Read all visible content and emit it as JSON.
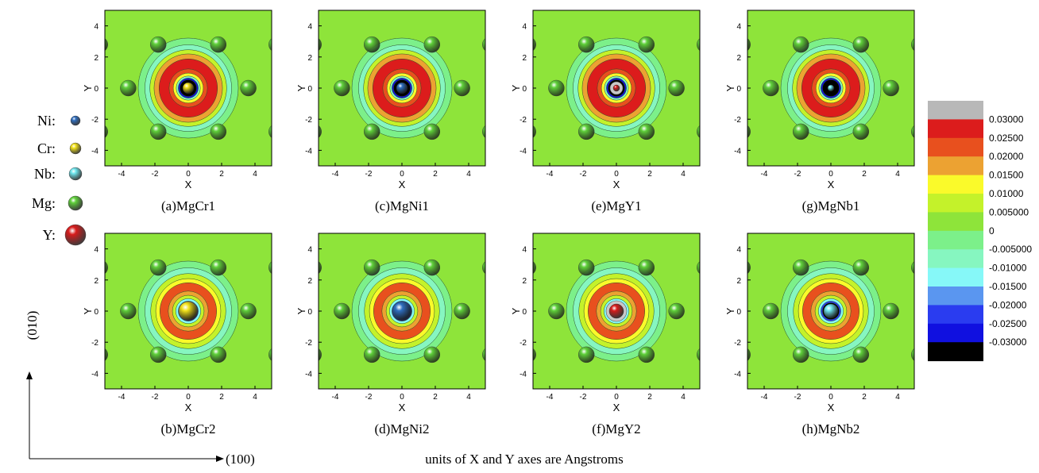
{
  "figure": {
    "atom_legend": [
      {
        "label": "Ni:",
        "color": "#2f6fc0"
      },
      {
        "label": "Cr:",
        "color": "#f2e21a"
      },
      {
        "label": "Nb:",
        "color": "#6fe8f0"
      },
      {
        "label": "Mg:",
        "color": "#5fd03a"
      },
      {
        "label": "Y:",
        "color": "#d81c1c"
      }
    ],
    "x_label": "X",
    "y_label": "Y",
    "xlim": [
      -5,
      5
    ],
    "ylim": [
      -5,
      5
    ],
    "ticks": [
      -4,
      -2,
      0,
      2,
      4
    ],
    "panels": [
      {
        "caption": "(a)MgCr1",
        "center_color": "#f2e21a"
      },
      {
        "caption": "(c)MgNi1",
        "center_color": "#2f6fc0"
      },
      {
        "caption": "(e)MgY1",
        "center_color": "#d81c1c"
      },
      {
        "caption": "(g)MgNb1",
        "center_color": "#6fe8f0"
      },
      {
        "caption": "(b)MgCr2",
        "center_color": "#f2e21a"
      },
      {
        "caption": "(d)MgNi2",
        "center_color": "#2f6fc0"
      },
      {
        "caption": "(f)MgY2",
        "center_color": "#d81c1c"
      },
      {
        "caption": "(h)MgNb2",
        "center_color": "#6fe8f0"
      }
    ],
    "colorbar": {
      "colors": [
        "#b8b8b8",
        "#dc1c1c",
        "#e8501e",
        "#eca232",
        "#fafa2a",
        "#c4f22a",
        "#8ee43a",
        "#7cf08a",
        "#86f6c0",
        "#86f8f8",
        "#5a96f0",
        "#2a3cf0",
        "#1010e0",
        "#000000"
      ],
      "labels": [
        "0.03000",
        "0.02500",
        "0.02000",
        "0.01500",
        "0.01000",
        "0.005000",
        "0",
        "-0.005000",
        "-0.01000",
        "-0.01500",
        "-0.02000",
        "-0.02500",
        "-0.03000"
      ]
    },
    "vertical_axis_label": "(010)",
    "horizontal_axis_label": "(100)",
    "note": "units of  X and Y axes are Angstroms"
  }
}
